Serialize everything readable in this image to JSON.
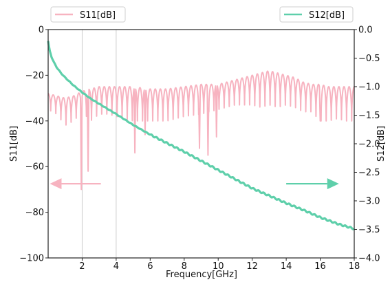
{
  "chart_data": {
    "type": "line",
    "xlabel": "Frequency[GHz]",
    "ylabel_left": "S11[dB]",
    "ylabel_right": "S12[dB]",
    "xlim": [
      0,
      18
    ],
    "ylim_left": [
      -100,
      0
    ],
    "ylim_right": [
      -4.0,
      0.0
    ],
    "x_ticks": [
      2,
      4,
      6,
      8,
      10,
      12,
      14,
      16,
      18
    ],
    "x_tick_labels": [
      "2",
      "4",
      "6",
      "8",
      "10",
      "12",
      "14",
      "16",
      "18"
    ],
    "y_left_ticks": [
      0,
      -20,
      -40,
      -60,
      -80,
      -100
    ],
    "y_left_tick_labels": [
      "0",
      "−20",
      "−40",
      "−60",
      "−80",
      "−100"
    ],
    "y_right_ticks": [
      0.0,
      -0.5,
      -1.0,
      -1.5,
      -2.0,
      -2.5,
      -3.0,
      -3.5,
      -4.0
    ],
    "y_right_tick_labels": [
      "0.0",
      "−0.5",
      "−1.0",
      "−1.5",
      "−2.0",
      "−2.5",
      "−3.0",
      "−3.5",
      "−4.0"
    ],
    "vertical_grid_at": [
      2,
      4
    ],
    "legend": [
      {
        "label": "S11[dB]",
        "axis": "left",
        "color": "#f7b3c0",
        "placement": "top-left"
      },
      {
        "label": "S12[dB]",
        "axis": "right",
        "color": "#5ecfaa",
        "placement": "top-right"
      }
    ],
    "series": [
      {
        "name": "S11[dB]",
        "axis": "left",
        "color": "#f7b3c0",
        "envelope": {
          "x": [
            0.0,
            0.5,
            1.0,
            1.5,
            2.0,
            2.5,
            3.0,
            3.5,
            4.0,
            5.0,
            6.0,
            7.0,
            8.0,
            9.0,
            10.0,
            10.5,
            11.0,
            11.5,
            12.0,
            12.5,
            13.0,
            13.5,
            14.0,
            14.5,
            15.0,
            15.5,
            16.0,
            16.5,
            17.0,
            17.5,
            18.0
          ],
          "top": [
            -28,
            -29,
            -30,
            -29,
            -27,
            -26,
            -25,
            -25,
            -25,
            -25,
            -26,
            -26,
            -25,
            -24,
            -24,
            -23,
            -22,
            -21,
            -20,
            -19,
            -18,
            -19,
            -20,
            -21,
            -23,
            -24,
            -24,
            -25,
            -25,
            -25,
            -25
          ],
          "bottom": [
            -35,
            -37,
            -42,
            -40,
            -36,
            -40,
            -37,
            -37,
            -38,
            -40,
            -40,
            -40,
            -38,
            -37,
            -35,
            -34,
            -33,
            -33,
            -33,
            -34,
            -33,
            -34,
            -33,
            -34,
            -36,
            -36,
            -40,
            -40,
            -39,
            -40,
            -40
          ]
        },
        "notches": [
          {
            "x": 1.95,
            "y": -70
          },
          {
            "x": 2.35,
            "y": -62
          },
          {
            "x": 5.1,
            "y": -54
          },
          {
            "x": 5.7,
            "y": -46
          },
          {
            "x": 8.9,
            "y": -52
          },
          {
            "x": 9.4,
            "y": -55
          },
          {
            "x": 9.9,
            "y": -47
          },
          {
            "x": 16.0,
            "y": -40
          }
        ]
      },
      {
        "name": "S12[dB]",
        "axis": "right",
        "color": "#5ecfaa",
        "x": [
          0.0,
          0.05,
          0.1,
          0.2,
          0.35,
          0.5,
          0.75,
          1.0,
          1.5,
          2.0,
          2.5,
          3.0,
          3.5,
          4.0,
          5.0,
          6.0,
          7.0,
          8.0,
          9.0,
          10.0,
          11.0,
          12.0,
          13.0,
          14.0,
          15.0,
          16.0,
          17.0,
          18.0
        ],
        "y": [
          -0.2,
          -0.3,
          -0.38,
          -0.48,
          -0.58,
          -0.66,
          -0.76,
          -0.84,
          -0.98,
          -1.1,
          -1.21,
          -1.3,
          -1.39,
          -1.48,
          -1.67,
          -1.84,
          -1.99,
          -2.14,
          -2.3,
          -2.46,
          -2.62,
          -2.78,
          -2.91,
          -3.04,
          -3.16,
          -3.29,
          -3.4,
          -3.49
        ]
      }
    ],
    "annotations": [
      {
        "type": "arrow",
        "direction": "left",
        "color": "#f7b3c0",
        "axis": "left",
        "x_from": 3.1,
        "x_to": 0.1,
        "y": -67.5
      },
      {
        "type": "arrow",
        "direction": "right",
        "color": "#5ecfaa",
        "axis": "right",
        "x_from": 14.0,
        "x_to": 17.1,
        "y": -2.7
      }
    ]
  }
}
